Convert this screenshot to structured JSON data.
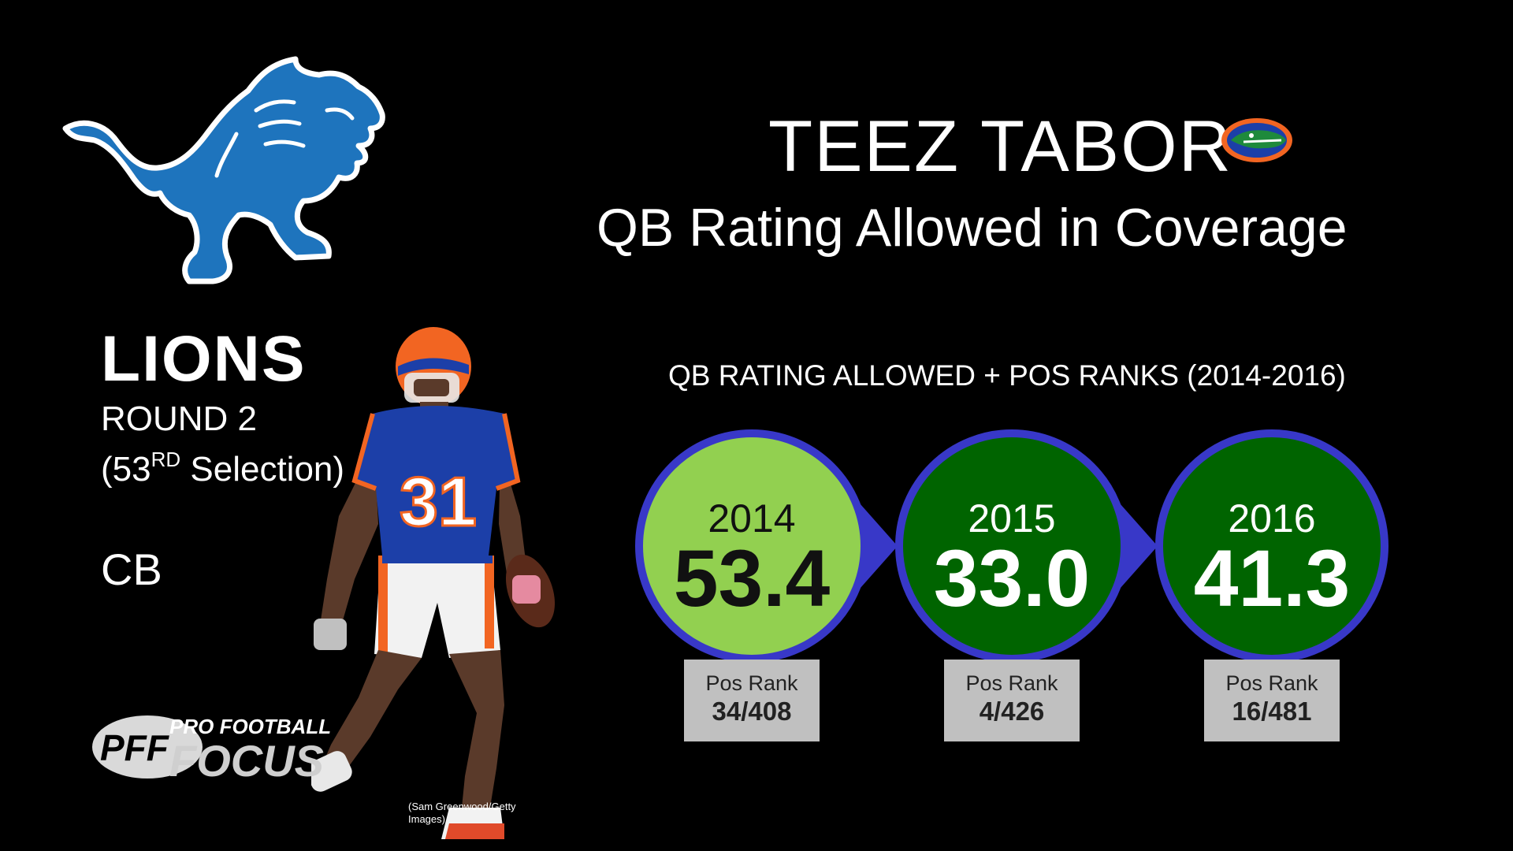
{
  "team": {
    "name": "LIONS",
    "round": "ROUND 2",
    "selection_prefix": "(53",
    "selection_sup": "RD",
    "selection_suffix": " Selection)",
    "position": "CB"
  },
  "player": {
    "name": "TEEZ TABOR",
    "jersey_number": "31"
  },
  "title": "QB Rating Allowed in Coverage",
  "subtitle": "QB RATING ALLOWED + POS RANKS (2014-2016)",
  "pff_logo": {
    "line1": "PRO FOOTBALL",
    "line2": "FOCUS",
    "mark": "PFF"
  },
  "photo_credit": "(Sam Greenwood/Getty Images)",
  "colors": {
    "ring_border": "#3838c8",
    "circle_light": "#92d050",
    "circle_dark": "#006400",
    "lions_blue": "#1e74bd",
    "rank_box": "#c0c0c0"
  },
  "icons": [
    "lions-logo-icon",
    "gators-logo-icon",
    "pff-logo-icon",
    "player-figure-icon"
  ],
  "chart_data": {
    "type": "table",
    "columns": [
      "Year",
      "QB Rating Allowed",
      "Pos Rank Label",
      "Pos Rank"
    ],
    "seasons": [
      {
        "year": "2014",
        "value": "53.4",
        "rank_label": "Pos Rank",
        "rank": "34/408",
        "fill": "#92d050",
        "text": "#111111"
      },
      {
        "year": "2015",
        "value": "33.0",
        "rank_label": "Pos Rank",
        "rank": "4/426",
        "fill": "#006400",
        "text": "#ffffff"
      },
      {
        "year": "2016",
        "value": "41.3",
        "rank_label": "Pos Rank",
        "rank": "16/481",
        "fill": "#006400",
        "text": "#ffffff"
      }
    ]
  }
}
